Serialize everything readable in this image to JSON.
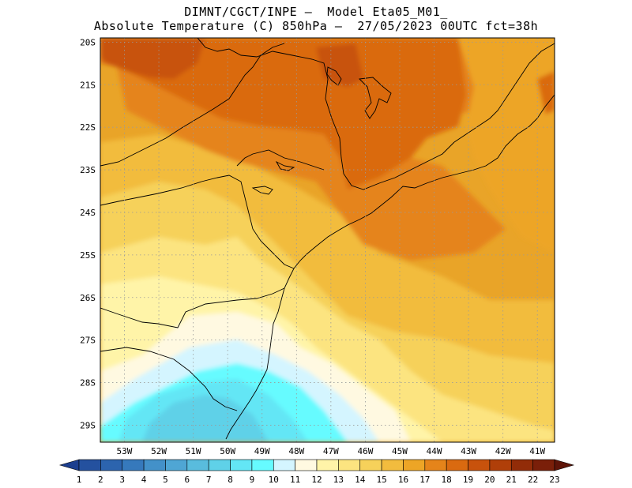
{
  "header": {
    "line1": "DIMNT/CGCT/INPE –  Model Eta05_M01_",
    "line2": "Absolute Temperature (C) 850hPa –  27/05/2023 00UTC fct=38h"
  },
  "map": {
    "lon_range": [
      -53.7,
      -40.5
    ],
    "lat_range": [
      -29.4,
      -19.9
    ],
    "lat_labels": [
      "20S",
      "21S",
      "22S",
      "23S",
      "24S",
      "25S",
      "26S",
      "27S",
      "28S",
      "29S"
    ],
    "lon_labels": [
      "53W",
      "52W",
      "51W",
      "50W",
      "49W",
      "48W",
      "47W",
      "46W",
      "45W",
      "44W",
      "43W",
      "42W",
      "41W"
    ],
    "grid": "dotted"
  },
  "colorbar": {
    "labels": [
      "1",
      "2",
      "3",
      "4",
      "5",
      "6",
      "7",
      "8",
      "9",
      "10",
      "11",
      "12",
      "13",
      "14",
      "15",
      "16",
      "17",
      "18",
      "19",
      "20",
      "21",
      "22",
      "23"
    ],
    "colors": [
      "#1c3f8f",
      "#24519f",
      "#2c64ae",
      "#3679bc",
      "#4391c9",
      "#4fa6d4",
      "#59bcdd",
      "#5fd1e8",
      "#63e6f5",
      "#66fbff",
      "#d4f5ff",
      "#fff9e1",
      "#fff4a8",
      "#fce480",
      "#f6d15a",
      "#f2bc3e",
      "#eda526",
      "#e5841a",
      "#da6a10",
      "#c8520c",
      "#b03f09",
      "#922c08",
      "#7a1f09",
      "#5e1408"
    ]
  }
}
